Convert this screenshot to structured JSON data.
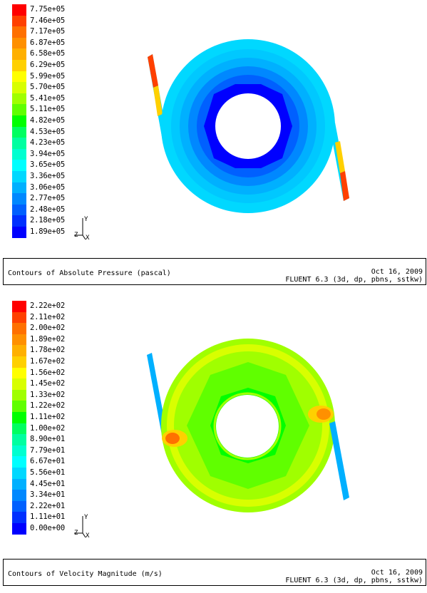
{
  "chart_data": [
    {
      "type": "heatmap",
      "title": "Contours of Absolute Pressure (pascal)",
      "date": "Oct 16, 2009",
      "solver": "FLUENT 6.3 (3d, dp, pbns, sstkw)",
      "legend_labels": [
        "7.75e+05",
        "7.46e+05",
        "7.17e+05",
        "6.87e+05",
        "6.58e+05",
        "6.29e+05",
        "5.99e+05",
        "5.70e+05",
        "5.41e+05",
        "5.11e+05",
        "4.82e+05",
        "4.53e+05",
        "4.23e+05",
        "3.94e+05",
        "3.65e+05",
        "3.36e+05",
        "3.06e+05",
        "2.77e+05",
        "2.48e+05",
        "2.18e+05",
        "1.89e+05"
      ],
      "legend_values": [
        775000,
        746000,
        717000,
        687000,
        658000,
        629000,
        599000,
        570000,
        541000,
        511000,
        482000,
        453000,
        423000,
        394000,
        365000,
        336000,
        306000,
        277000,
        248000,
        218000,
        189000
      ],
      "colors": [
        "#ff0000",
        "#ff4000",
        "#ff7000",
        "#ff9000",
        "#ffb000",
        "#ffd000",
        "#ffff00",
        "#d8ff00",
        "#a0ff00",
        "#60ff00",
        "#00ff00",
        "#00ff60",
        "#00ffa0",
        "#00ffd0",
        "#00ffff",
        "#00d8ff",
        "#00b0ff",
        "#0088ff",
        "#0060ff",
        "#0030ff",
        "#0000ff"
      ],
      "axes": {
        "y": "Y",
        "z": "Z",
        "x": "X"
      }
    },
    {
      "type": "heatmap",
      "title": "Contours of Velocity Magnitude (m/s)",
      "date": "Oct 16, 2009",
      "solver": "FLUENT 6.3 (3d, dp, pbns, sstkw)",
      "legend_labels": [
        "2.22e+02",
        "2.11e+02",
        "2.00e+02",
        "1.89e+02",
        "1.78e+02",
        "1.67e+02",
        "1.56e+02",
        "1.45e+02",
        "1.33e+02",
        "1.22e+02",
        "1.11e+02",
        "1.00e+02",
        "8.90e+01",
        "7.79e+01",
        "6.67e+01",
        "5.56e+01",
        "4.45e+01",
        "3.34e+01",
        "2.22e+01",
        "1.11e+01",
        "0.00e+00"
      ],
      "legend_values": [
        222,
        211,
        200,
        189,
        178,
        167,
        156,
        145,
        133,
        122,
        111,
        100,
        89.0,
        77.9,
        66.7,
        55.6,
        44.5,
        33.4,
        22.2,
        11.1,
        0
      ],
      "colors": [
        "#ff0000",
        "#ff4000",
        "#ff7000",
        "#ff9000",
        "#ffb000",
        "#ffd000",
        "#ffff00",
        "#d8ff00",
        "#a0ff00",
        "#60ff00",
        "#00ff00",
        "#00ff60",
        "#00ffa0",
        "#00ffd0",
        "#00ffff",
        "#00d8ff",
        "#00b0ff",
        "#0088ff",
        "#0060ff",
        "#0030ff",
        "#0000ff"
      ],
      "axes": {
        "y": "Y",
        "z": "Z",
        "x": "X"
      }
    }
  ]
}
